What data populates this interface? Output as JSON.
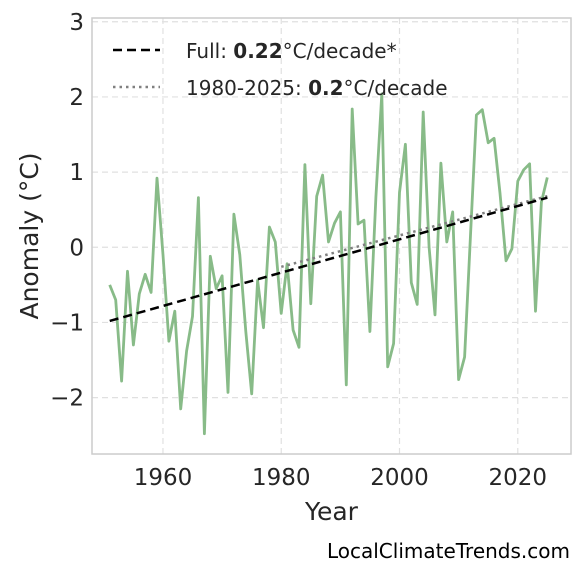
{
  "chart_data": {
    "type": "line",
    "xlabel": "Year",
    "ylabel": "Anomaly (°C)",
    "xlim": [
      1948,
      2029
    ],
    "ylim": [
      -2.75,
      3.05
    ],
    "x_ticks": [
      1960,
      1980,
      2000,
      2020
    ],
    "x_tick_labels": [
      "1960",
      "1980",
      "2000",
      "2020"
    ],
    "y_ticks": [
      -2,
      -1,
      0,
      1,
      2,
      3
    ],
    "y_tick_labels": [
      "−2",
      "−1",
      "0",
      "1",
      "2",
      "3"
    ],
    "grid": true,
    "legend_position": "top-left",
    "colors": {
      "anomaly": "#88bb88",
      "full_trend": "#000000",
      "recent_trend": "#808080",
      "grid": "#e0e0e0",
      "frame": "#cccccc"
    },
    "series": [
      {
        "x": [
          1951,
          1952,
          1953,
          1954,
          1955,
          1956,
          1957,
          1958,
          1959,
          1960,
          1961,
          1962,
          1963,
          1964,
          1965,
          1966,
          1967,
          1968,
          1969,
          1970,
          1971,
          1972,
          1973,
          1974,
          1975,
          1976,
          1977,
          1978,
          1979,
          1980,
          1981,
          1982,
          1983,
          1984,
          1985,
          1986,
          1987,
          1988,
          1989,
          1990,
          1991,
          1992,
          1993,
          1994,
          1995,
          1996,
          1997,
          1998,
          1999,
          2000,
          2001,
          2002,
          2003,
          2004,
          2005,
          2006,
          2007,
          2008,
          2009,
          2010,
          2011,
          2012,
          2013,
          2014,
          2015,
          2016,
          2017,
          2018,
          2019,
          2020,
          2021,
          2022,
          2023,
          2024,
          2025
        ],
        "y": [
          -0.5,
          -0.7,
          -1.78,
          -0.32,
          -1.3,
          -0.62,
          -0.36,
          -0.6,
          0.92,
          -0.1,
          -1.25,
          -0.85,
          -2.15,
          -1.38,
          -0.92,
          0.66,
          -2.48,
          -0.12,
          -0.55,
          -0.38,
          -1.93,
          0.44,
          -0.1,
          -1.12,
          -1.95,
          -0.44,
          -1.07,
          0.27,
          0.07,
          -0.88,
          -0.22,
          -1.1,
          -1.33,
          1.1,
          -0.75,
          0.68,
          0.96,
          0.07,
          0.32,
          0.47,
          -1.83,
          1.84,
          0.31,
          0.36,
          -1.12,
          0.67,
          2.04,
          -1.59,
          -1.28,
          0.73,
          1.37,
          -0.47,
          -0.76,
          1.8,
          0.0,
          -0.9,
          1.12,
          0.07,
          0.47,
          -1.76,
          -1.46,
          0.16,
          1.76,
          1.83,
          1.39,
          1.45,
          0.72,
          -0.18,
          -0.02,
          0.88,
          1.03,
          1.11,
          -0.85,
          0.6,
          0.93
        ]
      },
      {
        "name": "Full: 0.22°C/decade*",
        "label_prefix": "Full: ",
        "label_value": "0.22",
        "label_suffix": "°C/decade*",
        "x": [
          1951,
          2025
        ],
        "y": [
          -0.98,
          0.66
        ]
      },
      {
        "name": "1980-2025: 0.2°C/decade",
        "label_prefix": "1980-2025: ",
        "label_value": "0.2",
        "label_suffix": "°C/decade",
        "x": [
          1980,
          2025
        ],
        "y": [
          -0.26,
          0.68
        ]
      }
    ]
  },
  "watermark": "LocalClimateTrends.com"
}
